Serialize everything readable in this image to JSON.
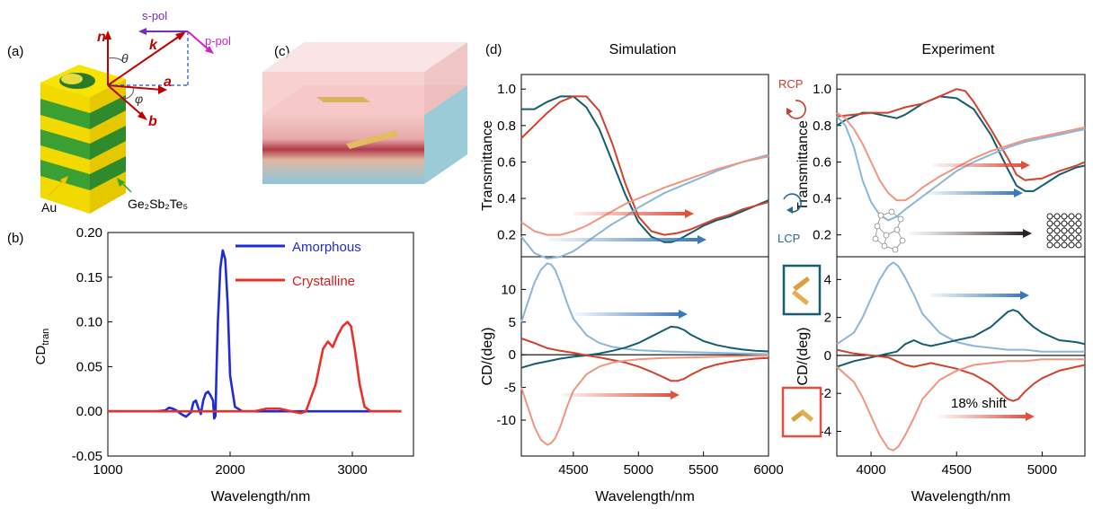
{
  "panels": {
    "a": {
      "label": "(a)",
      "vectors": [
        "n",
        "k",
        "a",
        "b"
      ],
      "angles": [
        "θ",
        "φ"
      ],
      "polarizations": [
        "s-pol",
        "p-pol"
      ],
      "materials": [
        "Au",
        "Ge₂Sb₂Te₅"
      ]
    },
    "b": {
      "label": "(b)"
    },
    "c": {
      "label": "(c)"
    },
    "d": {
      "label": "(d)",
      "col_titles": [
        "Simulation",
        "Experiment"
      ],
      "handedness": [
        "RCP",
        "LCP"
      ],
      "shift_label": "18% shift"
    }
  },
  "colors": {
    "blue": "#1f2bd6",
    "red": "#e8302a",
    "dark_teal": "#135d6e",
    "light_blue": "#8ab6dc",
    "dark_red": "#d2412c",
    "light_red": "#f2957d",
    "arrow_blue": "#3a78be",
    "arrow_red": "#e0503f"
  },
  "chart_data": [
    {
      "id": "b",
      "type": "line",
      "xlabel": "Wavelength/nm",
      "ylabel": "CD",
      "ylabel_sub": "tran",
      "xlim": [
        1000,
        3500
      ],
      "ylim": [
        -0.05,
        0.2
      ],
      "xticks": [
        1000,
        2000,
        3000
      ],
      "yticks": [
        "-0.05",
        "0.00",
        "0.05",
        "0.10",
        "0.15",
        "0.20"
      ],
      "series": [
        {
          "name": "Amorphous",
          "color": "#1f2bd6",
          "x": [
            1000,
            1400,
            1470,
            1500,
            1530,
            1560,
            1600,
            1640,
            1680,
            1700,
            1720,
            1740,
            1760,
            1780,
            1800,
            1820,
            1840,
            1860,
            1870,
            1880,
            1890,
            1900,
            1920,
            1940,
            1960,
            1980,
            2000,
            2040,
            2100,
            2200,
            3400
          ],
          "y": [
            0,
            0,
            0.001,
            0.004,
            0.003,
            0.001,
            -0.003,
            -0.006,
            -0.001,
            0.01,
            0.012,
            0.004,
            -0.003,
            0.012,
            0.02,
            0.022,
            0.018,
            0.012,
            -0.008,
            -0.005,
            0.05,
            0.1,
            0.16,
            0.18,
            0.17,
            0.12,
            0.04,
            0.005,
            0,
            0,
            0
          ]
        },
        {
          "name": "Crystalline",
          "color": "#e8302a",
          "x": [
            1000,
            1400,
            1800,
            2200,
            2300,
            2400,
            2500,
            2580,
            2620,
            2700,
            2760,
            2800,
            2840,
            2880,
            2920,
            2960,
            2990,
            3020,
            3060,
            3100,
            3150,
            3400
          ],
          "y": [
            0,
            0,
            0,
            0,
            0.003,
            0.003,
            0,
            -0.002,
            0,
            0.03,
            0.07,
            0.078,
            0.072,
            0.085,
            0.095,
            0.1,
            0.095,
            0.07,
            0.03,
            0.005,
            0,
            0
          ]
        }
      ]
    },
    {
      "id": "d-sim-T",
      "type": "line",
      "xlabel": "",
      "ylabel": "Transmittance",
      "xlim": [
        4100,
        6000
      ],
      "ylim": [
        0.08,
        1.08
      ],
      "yticks": [
        "0.2",
        "0.4",
        "0.6",
        "0.8",
        "1.0"
      ],
      "series": [
        {
          "color": "#135d6e",
          "x": [
            4100,
            4200,
            4300,
            4400,
            4500,
            4600,
            4700,
            4800,
            4900,
            5000,
            5100,
            5200,
            5250,
            5300,
            5400,
            5500,
            5600,
            5700,
            5800,
            5900,
            6000
          ],
          "y": [
            0.89,
            0.89,
            0.93,
            0.96,
            0.96,
            0.9,
            0.78,
            0.6,
            0.42,
            0.27,
            0.19,
            0.16,
            0.16,
            0.17,
            0.21,
            0.25,
            0.28,
            0.3,
            0.33,
            0.36,
            0.39
          ]
        },
        {
          "color": "#d2412c",
          "x": [
            4100,
            4200,
            4300,
            4400,
            4500,
            4600,
            4700,
            4800,
            4900,
            5000,
            5100,
            5200,
            5300,
            5400,
            5500,
            5600,
            5700,
            5800,
            5900,
            6000
          ],
          "y": [
            0.73,
            0.8,
            0.87,
            0.93,
            0.96,
            0.96,
            0.88,
            0.7,
            0.48,
            0.3,
            0.22,
            0.2,
            0.21,
            0.23,
            0.26,
            0.29,
            0.31,
            0.34,
            0.36,
            0.38
          ]
        },
        {
          "color": "#8ab6dc",
          "x": [
            4100,
            4200,
            4300,
            4400,
            4500,
            4600,
            4700,
            4800,
            4900,
            5000,
            5200,
            5400,
            5600,
            5800,
            6000
          ],
          "y": [
            0.19,
            0.1,
            0.07,
            0.08,
            0.11,
            0.16,
            0.21,
            0.26,
            0.3,
            0.35,
            0.43,
            0.49,
            0.55,
            0.6,
            0.64
          ]
        },
        {
          "color": "#f2957d",
          "x": [
            4100,
            4200,
            4300,
            4400,
            4500,
            4600,
            4700,
            4800,
            4900,
            5000,
            5200,
            5400,
            5600,
            5800,
            6000
          ],
          "y": [
            0.27,
            0.22,
            0.2,
            0.2,
            0.22,
            0.25,
            0.29,
            0.33,
            0.37,
            0.4,
            0.46,
            0.51,
            0.56,
            0.6,
            0.63
          ]
        }
      ]
    },
    {
      "id": "d-sim-CD",
      "type": "line",
      "xlabel": "Wavelength/nm",
      "ylabel": "CD/(deg)",
      "xlim": [
        4100,
        6000
      ],
      "ylim": [
        -15.5,
        15
      ],
      "xticks": [
        4500,
        5000,
        5500,
        6000
      ],
      "yticks": [
        "-10",
        "-5",
        "0",
        "5",
        "10"
      ],
      "series": [
        {
          "color": "#8ab6dc",
          "x": [
            4100,
            4150,
            4200,
            4250,
            4300,
            4330,
            4360,
            4400,
            4450,
            4500,
            4600,
            4700,
            4800,
            4900,
            5000,
            5200,
            5400,
            5600,
            5800,
            6000
          ],
          "y": [
            5,
            8,
            11,
            13,
            14,
            13.8,
            13,
            11,
            8,
            5.5,
            3,
            1.8,
            1.2,
            0.9,
            0.7,
            0.5,
            0.4,
            0.3,
            0.2,
            0.1
          ]
        },
        {
          "color": "#135d6e",
          "x": [
            4100,
            4200,
            4300,
            4400,
            4500,
            4600,
            4700,
            4800,
            4900,
            5000,
            5100,
            5200,
            5250,
            5300,
            5350,
            5400,
            5500,
            5600,
            5700,
            5800,
            5900,
            6000
          ],
          "y": [
            -2,
            -1.4,
            -1,
            -0.6,
            -0.3,
            -0.1,
            0.2,
            0.6,
            1.1,
            1.8,
            2.8,
            3.8,
            4.3,
            4.2,
            3.8,
            3.1,
            2.1,
            1.5,
            1.1,
            0.8,
            0.6,
            0.5
          ]
        },
        {
          "color": "#d2412c",
          "x": [
            4100,
            4200,
            4300,
            4400,
            4500,
            4600,
            4700,
            4800,
            4900,
            5000,
            5100,
            5200,
            5250,
            5300,
            5350,
            5400,
            5500,
            5600,
            5700,
            5800,
            5900,
            6000
          ],
          "y": [
            2.5,
            1.8,
            1,
            0.6,
            0.3,
            -0.1,
            -0.4,
            -0.8,
            -1.2,
            -1.8,
            -2.6,
            -3.5,
            -4,
            -4,
            -3.7,
            -3.1,
            -2.1,
            -1.5,
            -1.1,
            -0.8,
            -0.6,
            -0.5
          ]
        },
        {
          "color": "#f2957d",
          "x": [
            4100,
            4150,
            4200,
            4250,
            4300,
            4330,
            4360,
            4400,
            4450,
            4500,
            4600,
            4700,
            4800,
            4900,
            5000,
            5200,
            5400,
            5600,
            5800,
            6000
          ],
          "y": [
            -5,
            -8,
            -11,
            -13,
            -13.8,
            -13.5,
            -12.8,
            -11,
            -8,
            -5.5,
            -3,
            -1.8,
            -1.2,
            -0.9,
            -0.7,
            -0.5,
            -0.4,
            -0.3,
            -0.2,
            -0.1
          ]
        }
      ]
    },
    {
      "id": "d-exp-T",
      "type": "line",
      "xlabel": "",
      "ylabel": "Transmittance",
      "xlim": [
        3800,
        5250
      ],
      "ylim": [
        0.08,
        1.08
      ],
      "yticks": [
        "0.2",
        "0.4",
        "0.6",
        "0.8",
        "1.0"
      ],
      "series": [
        {
          "color": "#135d6e",
          "x": [
            3800,
            3850,
            3900,
            3950,
            4000,
            4050,
            4100,
            4150,
            4200,
            4250,
            4300,
            4400,
            4500,
            4600,
            4700,
            4800,
            4850,
            4900,
            4950,
            5000,
            5100,
            5200,
            5250
          ],
          "y": [
            0.8,
            0.83,
            0.85,
            0.87,
            0.87,
            0.86,
            0.85,
            0.84,
            0.86,
            0.89,
            0.92,
            0.96,
            0.95,
            0.89,
            0.75,
            0.56,
            0.47,
            0.44,
            0.44,
            0.47,
            0.53,
            0.57,
            0.58
          ]
        },
        {
          "color": "#d2412c",
          "x": [
            3800,
            3900,
            4000,
            4100,
            4200,
            4300,
            4400,
            4500,
            4550,
            4600,
            4700,
            4800,
            4850,
            4900,
            5000,
            5100,
            5200,
            5250
          ],
          "y": [
            0.85,
            0.86,
            0.87,
            0.87,
            0.9,
            0.92,
            0.96,
            1.0,
            0.99,
            0.93,
            0.78,
            0.62,
            0.53,
            0.5,
            0.51,
            0.55,
            0.58,
            0.6
          ]
        },
        {
          "color": "#8ab6dc",
          "x": [
            3800,
            3850,
            3900,
            3950,
            4000,
            4050,
            4100,
            4150,
            4200,
            4300,
            4400,
            4500,
            4600,
            4700,
            4800,
            4900,
            5000,
            5100,
            5200,
            5250
          ],
          "y": [
            0.85,
            0.8,
            0.68,
            0.5,
            0.38,
            0.31,
            0.28,
            0.3,
            0.34,
            0.41,
            0.48,
            0.55,
            0.6,
            0.64,
            0.68,
            0.71,
            0.73,
            0.75,
            0.77,
            0.78
          ]
        },
        {
          "color": "#f2957d",
          "x": [
            3800,
            3850,
            3900,
            3950,
            4000,
            4050,
            4100,
            4150,
            4200,
            4250,
            4300,
            4400,
            4500,
            4600,
            4700,
            4800,
            4900,
            5000,
            5100,
            5200,
            5250
          ],
          "y": [
            0.87,
            0.84,
            0.78,
            0.7,
            0.6,
            0.5,
            0.43,
            0.39,
            0.39,
            0.42,
            0.46,
            0.52,
            0.57,
            0.62,
            0.66,
            0.69,
            0.72,
            0.74,
            0.76,
            0.78,
            0.79
          ]
        }
      ]
    },
    {
      "id": "d-exp-CD",
      "type": "line",
      "xlabel": "Wavelength/nm",
      "ylabel": "CD/(deg)",
      "xlim": [
        3800,
        5250
      ],
      "ylim": [
        -5.3,
        5.2
      ],
      "xticks": [
        4000,
        4500,
        5000
      ],
      "yticks": [
        "-4",
        "-2",
        "0",
        "2",
        "4"
      ],
      "series": [
        {
          "color": "#8ab6dc",
          "x": [
            3800,
            3900,
            3950,
            4000,
            4050,
            4100,
            4130,
            4160,
            4200,
            4250,
            4300,
            4400,
            4500,
            4600,
            4700,
            4800,
            4900,
            5000,
            5100,
            5250
          ],
          "y": [
            0.6,
            1.2,
            2,
            3,
            4,
            4.7,
            4.9,
            4.7,
            4.1,
            3.2,
            2.2,
            1.2,
            0.7,
            0.5,
            0.4,
            0.3,
            0.3,
            0.2,
            0.2,
            0.2
          ]
        },
        {
          "color": "#135d6e",
          "x": [
            3800,
            3900,
            4000,
            4100,
            4150,
            4200,
            4250,
            4300,
            4350,
            4400,
            4500,
            4600,
            4700,
            4750,
            4800,
            4830,
            4860,
            4900,
            4950,
            5000,
            5100,
            5200,
            5250
          ],
          "y": [
            -0.6,
            -0.3,
            -0.1,
            0.1,
            0.2,
            0.6,
            0.8,
            0.6,
            0.5,
            0.6,
            0.8,
            1,
            1.5,
            1.9,
            2.3,
            2.4,
            2.3,
            1.9,
            1.5,
            1.2,
            0.8,
            0.7,
            0.6
          ]
        },
        {
          "color": "#d2412c",
          "x": [
            3800,
            3900,
            4000,
            4100,
            4150,
            4200,
            4250,
            4300,
            4350,
            4400,
            4500,
            4600,
            4700,
            4750,
            4800,
            4830,
            4860,
            4900,
            4950,
            5000,
            5100,
            5200,
            5250
          ],
          "y": [
            0.3,
            0.1,
            0,
            -0.1,
            -0.3,
            -0.5,
            -0.6,
            -0.5,
            -0.4,
            -0.5,
            -0.7,
            -1,
            -1.5,
            -1.9,
            -2.3,
            -2.4,
            -2.3,
            -1.9,
            -1.5,
            -1.2,
            -0.8,
            -0.6,
            -0.5
          ]
        },
        {
          "color": "#f2957d",
          "x": [
            3800,
            3900,
            3950,
            4000,
            4050,
            4100,
            4130,
            4160,
            4200,
            4250,
            4300,
            4400,
            4500,
            4600,
            4700,
            4800,
            4900,
            5000,
            5100,
            5250
          ],
          "y": [
            -0.6,
            -1.4,
            -2.2,
            -3.2,
            -4.2,
            -4.9,
            -5,
            -4.8,
            -4.2,
            -3.3,
            -2.3,
            -1.3,
            -0.8,
            -0.5,
            -0.4,
            -0.3,
            -0.3,
            -0.2,
            -0.2,
            -0.2
          ]
        }
      ]
    }
  ]
}
